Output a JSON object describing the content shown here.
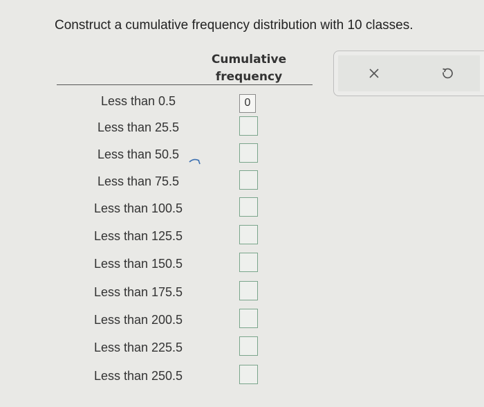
{
  "instruction": "Construct a cumulative frequency distribution with 10 classes.",
  "table": {
    "header_line1": "Cumulative",
    "header_line2": "frequency",
    "rows": [
      {
        "label": "Less than 0.5",
        "value": "0"
      },
      {
        "label": "Less than 25.5",
        "value": ""
      },
      {
        "label": "Less than 50.5",
        "value": ""
      },
      {
        "label": "Less than 75.5",
        "value": ""
      },
      {
        "label": "Less than 100.5",
        "value": ""
      },
      {
        "label": "Less than 125.5",
        "value": ""
      },
      {
        "label": "Less than 150.5",
        "value": ""
      },
      {
        "label": "Less than 175.5",
        "value": ""
      },
      {
        "label": "Less than 200.5",
        "value": ""
      },
      {
        "label": "Less than 225.5",
        "value": ""
      },
      {
        "label": "Less than 250.5",
        "value": ""
      }
    ]
  },
  "buttons": {
    "clear_icon": "close-icon",
    "undo_icon": "undo-icon"
  },
  "colors": {
    "input_border": "#7aa58b",
    "filled_border": "#8a8a8a"
  }
}
